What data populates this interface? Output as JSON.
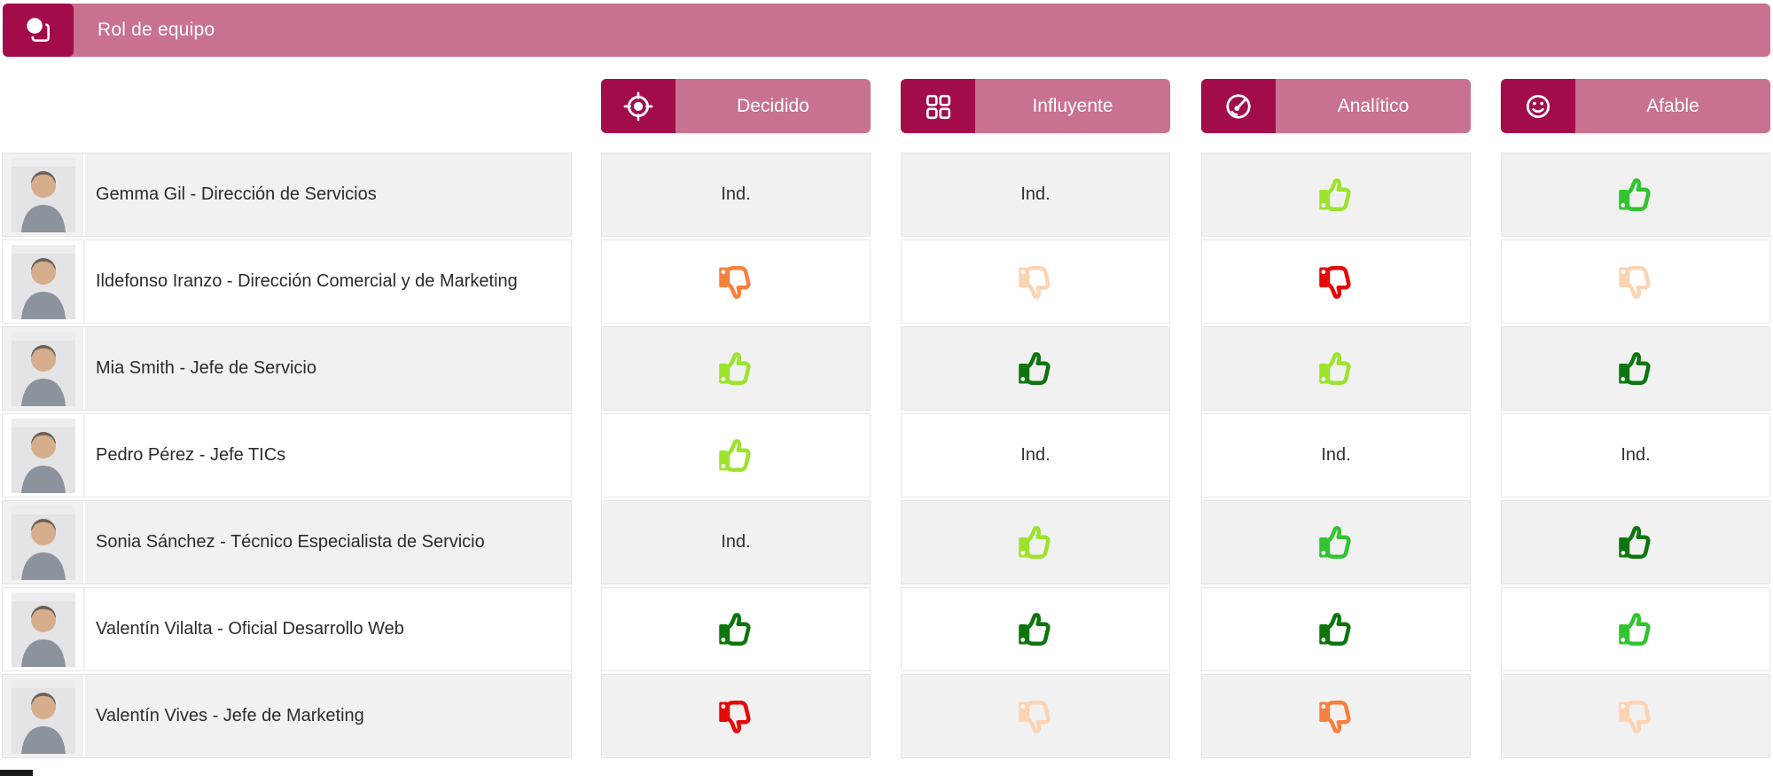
{
  "header": {
    "title": "Rol de equipo",
    "icon": "persona-icon"
  },
  "columns": [
    {
      "label": "Decidido",
      "icon": "target-icon"
    },
    {
      "label": "Influyente",
      "icon": "grid-icon"
    },
    {
      "label": "Analítico",
      "icon": "gauge-icon"
    },
    {
      "label": "Afable",
      "icon": "smiley-icon"
    }
  ],
  "labels": {
    "indeterminate": "Ind."
  },
  "colors": {
    "brand_dark": "#a20c49",
    "brand_light": "#c97190",
    "row_alt_bg": "#f1f1f2",
    "thumb": {
      "up-light": "#9de32d",
      "up-medium": "#30c431",
      "up-dark": "#0d750d",
      "down-red": "#e60707",
      "down-orange": "#f8803e",
      "down-pale": "#fcd4b4"
    }
  },
  "rows": [
    {
      "name": "Gemma Gil - Dirección de Servicios",
      "cells": [
        "ind",
        "ind",
        "up-light",
        "up-medium"
      ]
    },
    {
      "name": "Ildefonso Iranzo - Dirección Comercial y de Marketing",
      "cells": [
        "down-orange",
        "down-pale",
        "down-red",
        "down-pale"
      ]
    },
    {
      "name": "Mia Smith - Jefe de Servicio",
      "cells": [
        "up-light",
        "up-dark",
        "up-light",
        "up-dark"
      ]
    },
    {
      "name": "Pedro Pérez - Jefe TICs",
      "cells": [
        "up-light",
        "ind",
        "ind",
        "ind"
      ]
    },
    {
      "name": "Sonia Sánchez - Técnico Especialista de Servicio",
      "cells": [
        "ind",
        "up-light",
        "up-medium",
        "up-dark"
      ]
    },
    {
      "name": "Valentín Vilalta - Oficial Desarrollo Web",
      "cells": [
        "up-dark",
        "up-dark",
        "up-dark",
        "up-medium"
      ]
    },
    {
      "name": "Valentín Vives - Jefe de Marketing",
      "cells": [
        "down-red",
        "down-pale",
        "down-orange",
        "down-pale"
      ]
    }
  ]
}
